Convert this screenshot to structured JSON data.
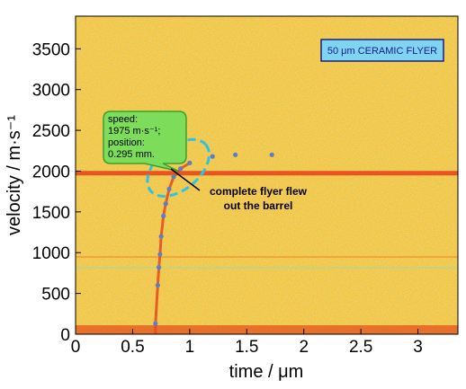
{
  "chart_data": {
    "type": "scatter",
    "xlabel": "time / μm",
    "ylabel": "velocity / m·s⁻¹",
    "xlim": [
      0,
      3.35
    ],
    "ylim": [
      0,
      3900
    ],
    "x_ticks": [
      "0",
      "0.5",
      "1",
      "1.5",
      "2",
      "2.5",
      "3"
    ],
    "x_tick_values": [
      0,
      0.5,
      1,
      1.5,
      2,
      2.5,
      3
    ],
    "y_ticks": [
      "0",
      "500",
      "1000",
      "1500",
      "2000",
      "2500",
      "3000",
      "3500"
    ],
    "y_tick_values": [
      0,
      500,
      1000,
      1500,
      2000,
      2500,
      3000,
      3500
    ],
    "grid": false,
    "background": "spectrogram",
    "series": [
      {
        "color": "#5b7fc7",
        "points": [
          [
            0.7,
            130
          ],
          [
            0.72,
            600
          ],
          [
            0.73,
            820
          ],
          [
            0.74,
            980
          ],
          [
            0.75,
            1200
          ],
          [
            0.77,
            1450
          ],
          [
            0.79,
            1600
          ],
          [
            0.82,
            1780
          ],
          [
            0.86,
            1930
          ],
          [
            0.92,
            2030
          ],
          [
            1.0,
            2100
          ],
          [
            1.2,
            2180
          ],
          [
            1.4,
            2200
          ],
          [
            1.72,
            2200
          ]
        ]
      }
    ],
    "horizontal_line": {
      "y": 1975,
      "color": "#e8481c"
    },
    "legend_badge": "50 μm CERAMIC FLYER",
    "callout_lines": [
      "speed:",
      "1975 m·s⁻¹;",
      "position:",
      "0.295 mm."
    ],
    "annotation_lines": [
      "complete flyer flew",
      "out the barrel"
    ],
    "annotation_ellipse_center": [
      0.9,
      2040
    ],
    "callout_anchor": [
      0.9,
      2000
    ],
    "colors": {
      "background_yellow": "#f6ca3a",
      "noise_orange": "#ef8a26",
      "noise_cyan": "#7fe0d0",
      "callout_fill": "#7ddc5a",
      "badge_fill": "#7fd4f0",
      "ellipse": "#2ec3e6"
    }
  }
}
